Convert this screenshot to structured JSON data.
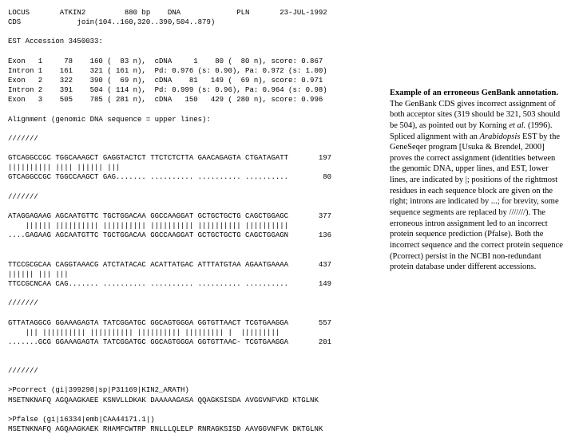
{
  "locus_line": "LOCUS       ATKIN2         880 bp    DNA             PLN       23-JUL-1992",
  "cds_line": "CDS             join(104..160,320..390,504..879)",
  "blank1": "",
  "est_line": "EST Accession 3450033:",
  "blank2": "",
  "exon1": "Exon   1     78    160 (  83 n),  cDNA     1    80 (  80 n), score: 0.867",
  "intron1": "Intron 1    161    321 ( 161 n),  Pd: 0.976 (s: 0.90), Pa: 0.972 (s: 1.00)",
  "exon2": "Exon   2    322    390 (  69 n),  cDNA    81   149 (  69 n), score: 0.971",
  "intron2": "Intron 2    391    504 ( 114 n),  Pd: 0.999 (s: 0.96), Pa: 0.964 (s: 0.98)",
  "exon3": "Exon   3    505    785 ( 281 n),  cDNA   150   429 ( 280 n), score: 0.996",
  "blank3": "",
  "align_hdr": "Alignment (genomic DNA sequence = upper lines):",
  "blank4": "",
  "sep1": "///////",
  "blank5": "",
  "seq1a": "GTCAGGCCGC TGGCAAAGCT GAGGTACTCT TTCTCTCTTA GAACAGAGTA CTGATAGATT       197",
  "seq1b": "|||||||||| |||| |||||| |||",
  "seq1c": "GTCAGGCCGC TGGCCAAGCT GAG....... .......... .......... ..........        80",
  "blank6": "",
  "sep2": "///////",
  "blank7": "",
  "seq2a": "ATAGGAGAAG AGCAATGTTC TGCTGGACAA GGCCAAGGAT GCTGCTGCTG CAGCTGGAGC       377",
  "seq2b": "    |||||| |||||||||| |||||||||| |||||||||| |||||||||| ||||||||||",
  "seq2c": "....GAGAAG AGCAATGTTC TGCTGGACAA GGCCAAGGAT GCTGCTGCTG CAGCTGGAGN       136",
  "blank8": "",
  "blank9": "",
  "seq3a": "TTCCGCGCAA CAGGTAAACG ATCTATACAC ACATTATGAC ATTTATGTAA AGAATGAAAA       437",
  "seq3b": "|||||| ||| |||",
  "seq3c": "TTCCGCNCAA CAG....... .......... .......... .......... ..........       149",
  "blank10": "",
  "sep3": "///////",
  "blank11": "",
  "seq4a": "GTTATAGGCG GGAAAGAGTA TATCGGATGC GGCAGTGGGA GGTGTTAACT TCGTGAAGGA       557",
  "seq4b": "    ||| |||||||||| |||||||||| |||||||||| ||||||||| |  |||||||||",
  "seq4c": ".......GCG GGAAAGAGTA TATCGGATGC GGCAGTGGGA GGTGTTAAC- TCGTGAAGGA       201",
  "blank12": "",
  "blank13": "",
  "sep4": "///////",
  "blank14": "",
  "pcorrect": ">Pcorrect (gi|399298|sp|P31169|KIN2_ARATH)",
  "pcorrect_seq": "MSETNKNAFQ AGQAAGKAEE KSNVLLDKAK DAAAAAGASA QQAGKSISDA AVGGVNFVKD KTGLNK",
  "blank15": "",
  "pfalse": ">Pfalse (gi|16334|emb|CAA44171.1|)",
  "pfalse_seq": "MSETNKNAFQ AGQAAGKAEK RHAMFCWTRP RNLLLQLELP RNRAGKSISD AAVGGVNFVK DKTGLNK",
  "caption_bold": "Example of an erroneous GenBank annotation.",
  "caption_text": " The GenBank CDS gives incorrect assignment of both acceptor sites (319 should be 321, 503 should be 504), as pointed out by Korning ",
  "caption_etal": "et al.",
  "caption_text2": " (1996). Spliced alignment with an ",
  "caption_ital": "Arabidopsis",
  "caption_text3": " EST by the GeneSeqer program [Usuka & Brendel, 2000] proves the correct assignment (identities between the genomic DNA, upper lines, and EST, lower lines, are indicated by |; positions of the rightmost residues in each sequence block are given on the right; introns are indicated by ...; for brevity, some sequence segments are replaced by ///////). The erroneous intron assignment led to an incorrect protein sequence prediction (Pfalse). Both the incorrect sequence and the correct protein sequence (Pcorrect) persist in the NCBI non-redundant protein database under different accessions."
}
